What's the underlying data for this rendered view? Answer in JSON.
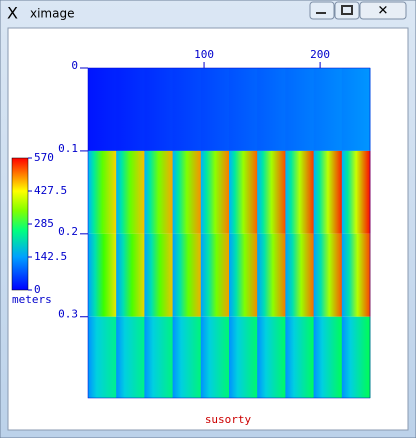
{
  "window": {
    "title": "ximage"
  },
  "chart_data": {
    "type": "image",
    "xlabel": "susorty",
    "xlim": [
      0,
      243
    ],
    "xticks": [
      100,
      200
    ],
    "ylim": [
      0,
      0.398
    ],
    "yticks": [
      0,
      0.1,
      0.2,
      0.3
    ],
    "colorbar": {
      "label": "meters",
      "lim": [
        0,
        570
      ],
      "ticks": [
        0,
        142.5,
        285,
        427.5,
        570
      ]
    }
  }
}
